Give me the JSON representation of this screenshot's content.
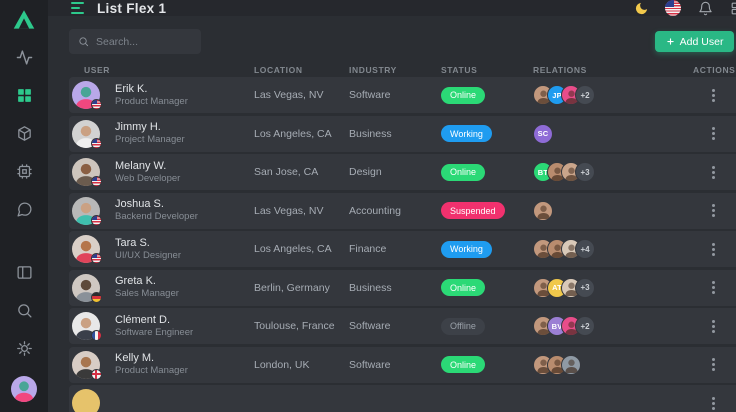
{
  "app": {
    "name": "List Flex 1"
  },
  "colors": {
    "accent": "#2dc98c",
    "add_button": "#2ab885",
    "status_online": "#2bd976",
    "status_working": "#1f9cf0",
    "status_suspended": "#f1316e",
    "sidebar_bg": "#1f2125",
    "row_bg": "#34373d"
  },
  "sidebar": {
    "logo_icon": "triangle-logo",
    "items_top": [
      {
        "icon": "activity-icon",
        "active": false
      },
      {
        "icon": "dashboard-grid-icon",
        "active": true
      },
      {
        "icon": "package-icon",
        "active": false
      },
      {
        "icon": "cpu-icon",
        "active": false
      },
      {
        "icon": "chat-bubble-icon",
        "active": false
      }
    ],
    "items_bottom": [
      {
        "icon": "layout-icon"
      },
      {
        "icon": "search-icon"
      },
      {
        "icon": "settings-gear-icon"
      }
    ],
    "profile": "user-avatar"
  },
  "topbar": {
    "menu_icon": "menu-icon",
    "title": "List Flex 1",
    "actions": [
      {
        "icon": "moon-icon"
      },
      {
        "icon": "us-flag-icon"
      },
      {
        "icon": "bell-icon"
      },
      {
        "icon": "grid-icon"
      }
    ]
  },
  "toolbar": {
    "search_placeholder": "Search...",
    "add_user": {
      "icon": "plus-icon",
      "label": "Add User"
    }
  },
  "table": {
    "columns": [
      "USER",
      "LOCATION",
      "INDUSTRY",
      "STATUS",
      "RELATIONS",
      "ACTIONS"
    ],
    "rows": [
      {
        "name": "Erik K.",
        "role": "Product Manager",
        "location": "Las Vegas, NV",
        "industry": "Software",
        "status": {
          "label": "Online",
          "type": "online"
        },
        "avatar": {
          "bg": "#b9a8e9",
          "head": "#49a596",
          "shirt": "#f2477f",
          "flag": "us"
        },
        "relations": [
          {
            "type": "photo",
            "bg": "#c2987d"
          },
          {
            "type": "initials",
            "text": "JP",
            "bg": "#1f9cf0"
          },
          {
            "type": "photo",
            "bg": "#e84d8a"
          }
        ],
        "extra": "+2"
      },
      {
        "name": "Jimmy H.",
        "role": "Project Manager",
        "location": "Los Angeles, CA",
        "industry": "Business",
        "status": {
          "label": "Working",
          "type": "working"
        },
        "avatar": {
          "bg": "#d2d2d2",
          "head": "#caa183",
          "shirt": "#efefef",
          "flag": "us"
        },
        "relations": [
          {
            "type": "initials",
            "text": "SC",
            "bg": "#8e6bd6"
          }
        ],
        "extra": ""
      },
      {
        "name": "Melany W.",
        "role": "Web Developer",
        "location": "San Jose, CA",
        "industry": "Design",
        "status": {
          "label": "Online",
          "type": "online"
        },
        "avatar": {
          "bg": "#cdc5bd",
          "head": "#8a5f43",
          "shirt": "#6b5b4e",
          "flag": "us"
        },
        "relations": [
          {
            "type": "initials",
            "text": "BT",
            "bg": "#2bd976"
          },
          {
            "type": "photo",
            "bg": "#b98c6e"
          },
          {
            "type": "photo",
            "bg": "#caa58b"
          }
        ],
        "extra": "+3"
      },
      {
        "name": "Joshua S.",
        "role": "Backend Developer",
        "location": "Las Vegas, NV",
        "industry": "Accounting",
        "status": {
          "label": "Suspended",
          "type": "suspended"
        },
        "avatar": {
          "bg": "#b8b8b8",
          "head": "#caa183",
          "shirt": "#3fbfae",
          "flag": "us"
        },
        "relations": [
          {
            "type": "photo",
            "bg": "#c2987d"
          }
        ],
        "extra": ""
      },
      {
        "name": "Tara S.",
        "role": "UI/UX Designer",
        "location": "Los Angeles, CA",
        "industry": "Finance",
        "status": {
          "label": "Working",
          "type": "working"
        },
        "avatar": {
          "bg": "#d9cfc7",
          "head": "#b5754a",
          "shirt": "#e0445a",
          "flag": "us"
        },
        "relations": [
          {
            "type": "photo",
            "bg": "#c2987d"
          },
          {
            "type": "photo",
            "bg": "#b98c6e"
          },
          {
            "type": "photo",
            "bg": "#d9c9b8"
          }
        ],
        "extra": "+4"
      },
      {
        "name": "Greta K.",
        "role": "Sales Manager",
        "location": "Berlin, Germany",
        "industry": "Business",
        "status": {
          "label": "Online",
          "type": "online"
        },
        "avatar": {
          "bg": "#cfc8c2",
          "head": "#5e4a3a",
          "shirt": "#8a9199",
          "flag": "de"
        },
        "relations": [
          {
            "type": "photo",
            "bg": "#c2987d"
          },
          {
            "type": "initials",
            "text": "AT",
            "bg": "#f0c84b"
          },
          {
            "type": "photo",
            "bg": "#d9c9b8"
          }
        ],
        "extra": "+3"
      },
      {
        "name": "Clément D.",
        "role": "Software Engineer",
        "location": "Toulouse, France",
        "industry": "Software",
        "status": {
          "label": "Offline",
          "type": "offline"
        },
        "avatar": {
          "bg": "#e8e8e8",
          "head": "#caa183",
          "shirt": "#3a3f4a",
          "flag": "fr"
        },
        "relations": [
          {
            "type": "photo",
            "bg": "#c2987d"
          },
          {
            "type": "initials",
            "text": "BV",
            "bg": "#9b7fd4"
          },
          {
            "type": "photo",
            "bg": "#e84d8a"
          }
        ],
        "extra": "+2"
      },
      {
        "name": "Kelly M.",
        "role": "Product Manager",
        "location": "London, UK",
        "industry": "Software",
        "status": {
          "label": "Online",
          "type": "online"
        },
        "avatar": {
          "bg": "#d8cdc5",
          "head": "#a8764f",
          "shirt": "#3a3a3a",
          "flag": "en"
        },
        "relations": [
          {
            "type": "photo",
            "bg": "#c2987d"
          },
          {
            "type": "photo",
            "bg": "#b98c6e"
          },
          {
            "type": "photo",
            "bg": "#8f9aa5"
          }
        ],
        "extra": ""
      },
      {
        "name": "",
        "role": "",
        "location": "",
        "industry": "",
        "status": null,
        "avatar": {
          "bg": "#e6c36b",
          "head": "#e6c36b",
          "shirt": "#e6c36b",
          "flag": ""
        },
        "relations": [],
        "extra": "",
        "partial": true
      }
    ]
  }
}
